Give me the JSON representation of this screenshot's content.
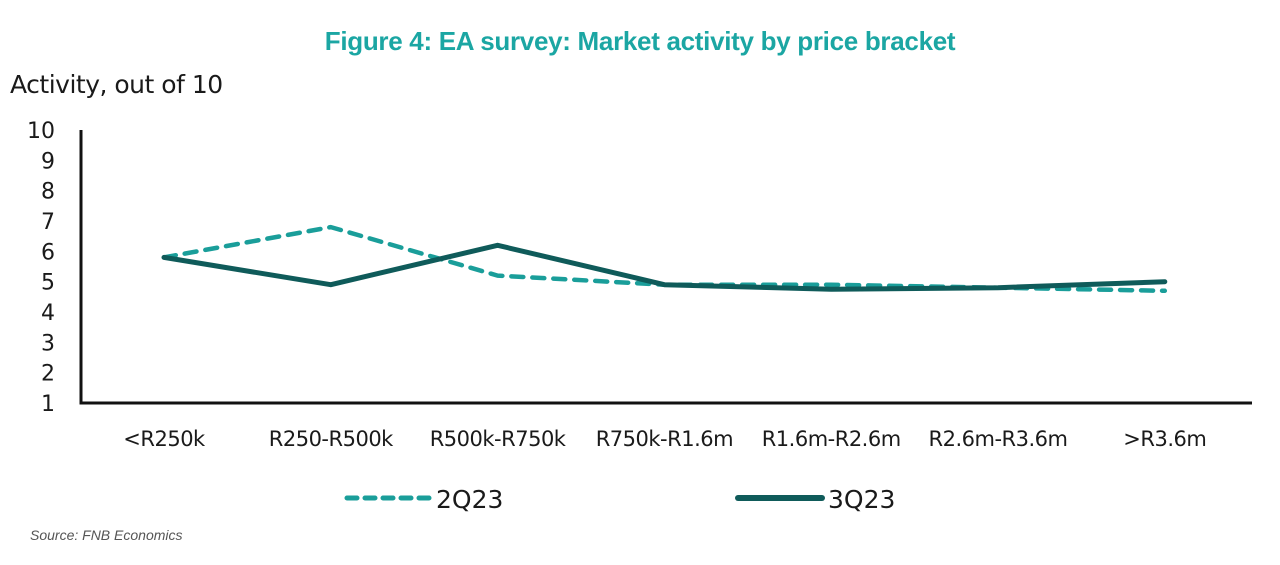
{
  "chart_data": {
    "type": "line",
    "title": "Figure 4: EA survey: Market activity by price bracket",
    "ylabel": "Activity, out of 10",
    "xlabel": "",
    "ylim": [
      1,
      10
    ],
    "yticks": [
      1,
      2,
      3,
      4,
      5,
      6,
      7,
      8,
      9,
      10
    ],
    "grid": false,
    "legend_position": "bottom",
    "categories": [
      "<R250k",
      "R250-R500k",
      "R500k-R750k",
      "R750k-R1.6m",
      "R1.6m-R2.6m",
      "R2.6m-R3.6m",
      ">R3.6m"
    ],
    "series": [
      {
        "name": "2Q23",
        "style": "dashed",
        "color": "#1A9E9A",
        "values": [
          5.8,
          6.8,
          5.2,
          4.9,
          4.9,
          4.8,
          4.7
        ]
      },
      {
        "name": "3Q23",
        "style": "solid",
        "color": "#0F5B5A",
        "values": [
          5.8,
          4.9,
          6.2,
          4.9,
          4.75,
          4.8,
          5.0
        ]
      }
    ],
    "source": "Source: FNB Economics"
  }
}
